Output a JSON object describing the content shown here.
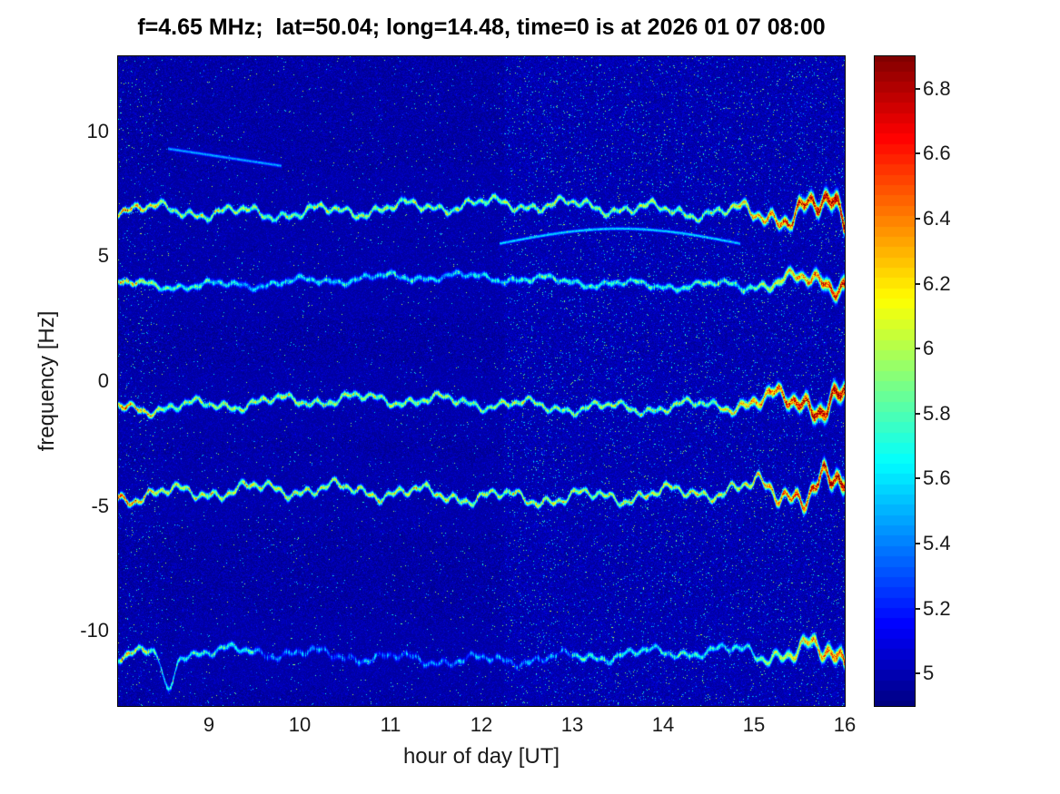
{
  "chart_data": {
    "type": "heatmap",
    "subtype": "doppler-spectrogram",
    "title": "f=4.65 MHz;  lat=50.04; long=14.48, time=0 is at 2026 01 07 08:00",
    "xlabel": "hour of day [UT]",
    "ylabel": "frequency [Hz]",
    "xlim": [
      8,
      16
    ],
    "ylim": [
      -13,
      13
    ],
    "xticks": [
      9,
      10,
      11,
      12,
      13,
      14,
      15,
      16
    ],
    "yticks": [
      10,
      5,
      0,
      -5,
      -10
    ],
    "colormap": "jet",
    "clim": [
      4.9,
      6.9
    ],
    "colorbar_ticks": [
      5,
      5.2,
      5.4,
      5.6,
      5.8,
      6,
      6.2,
      6.4,
      6.6,
      6.8
    ],
    "background_level": 4.95,
    "noise_regions": [
      {
        "from": 8.0,
        "to": 8.5,
        "speckle": 0.05,
        "lift": 0
      },
      {
        "from": 8.5,
        "to": 12.25,
        "speckle": 0.022,
        "lift": 0
      },
      {
        "from": 12.25,
        "to": 16.01,
        "speckle": 0.075,
        "lift": 0.02
      }
    ],
    "traces": [
      {
        "name": "doppler-line-plus7",
        "center_hz": 6.9,
        "wiggle_amp": 0.35,
        "base_intensity": 5.95,
        "peak_intensity": 6.85,
        "peak_from": 14.7
      },
      {
        "name": "doppler-line-plus4",
        "center_hz": 4.0,
        "wiggle_amp": 0.22,
        "base_intensity": 5.75,
        "peak_intensity": 6.8,
        "peak_from": 15.0,
        "gap": [
          9.0,
          12.5
        ],
        "gap_drop": 0.15
      },
      {
        "name": "doppler-line-minus1",
        "center_hz": -0.9,
        "wiggle_amp": 0.32,
        "base_intensity": 5.95,
        "peak_intensity": 6.8,
        "peak_from": 14.6
      },
      {
        "name": "doppler-line-minus4p5",
        "center_hz": -4.5,
        "wiggle_amp": 0.4,
        "base_intensity": 6.05,
        "peak_intensity": 6.85,
        "peak_from": 14.9
      },
      {
        "name": "doppler-line-minus11",
        "center_hz": -11.0,
        "wiggle_amp": 0.3,
        "base_intensity": 5.7,
        "peak_intensity": 6.6,
        "peak_from": 15.0,
        "gap": [
          9.5,
          13.0
        ],
        "gap_drop": 0.35,
        "dip": {
          "t": 8.55,
          "depth": 1.6,
          "width": 0.06
        }
      }
    ],
    "faint_features": [
      {
        "t0": 12.2,
        "t1": 14.85,
        "f_base": 5.5,
        "f_bump": 0.6,
        "intensity": 5.6
      },
      {
        "t0": 8.55,
        "t1": 9.8,
        "f_base": 9.3,
        "f_slope": -0.55,
        "intensity": 5.5
      }
    ]
  }
}
